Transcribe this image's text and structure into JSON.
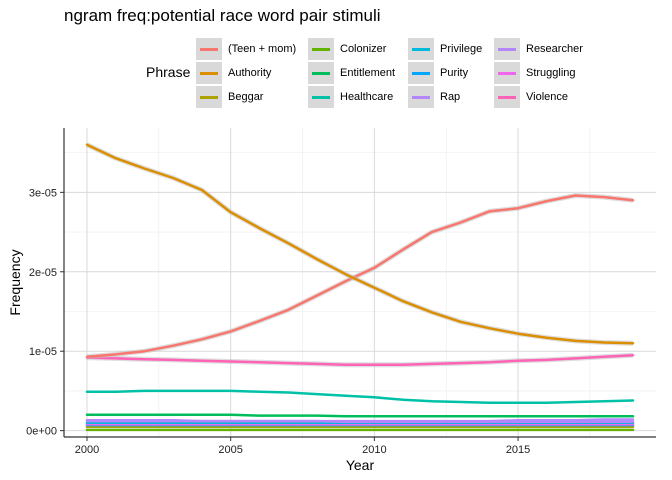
{
  "chart_data": {
    "type": "line",
    "title": "ngram freq:potential race word pair stimuli",
    "xlabel": "Year",
    "ylabel": "Frequency",
    "legend_title": "Phrase",
    "legend_position": "top",
    "grid": true,
    "xlim": [
      1999.2,
      2019.8
    ],
    "ylim": [
      -8e-07,
      3.81e-05
    ],
    "xticks": [
      2000,
      2005,
      2010,
      2015
    ],
    "xtick_labels": [
      "2000",
      "2005",
      "2010",
      "2015"
    ],
    "yticks": [
      0,
      1e-05,
      2e-05,
      3e-05
    ],
    "ytick_labels": [
      "0e+00",
      "1e-05",
      "2e-05",
      "3e-05"
    ],
    "x": [
      2000,
      2001,
      2002,
      2003,
      2004,
      2005,
      2006,
      2007,
      2008,
      2009,
      2010,
      2011,
      2012,
      2013,
      2014,
      2015,
      2016,
      2017,
      2018,
      2019
    ],
    "series": [
      {
        "name": "(Teen + mom)",
        "color": "#F8766D",
        "values": [
          9.3e-06,
          9.6e-06,
          1e-05,
          1.07e-05,
          1.15e-05,
          1.25e-05,
          1.38e-05,
          1.52e-05,
          1.7e-05,
          1.88e-05,
          2.05e-05,
          2.28e-05,
          2.5e-05,
          2.62e-05,
          2.76e-05,
          2.8e-05,
          2.89e-05,
          2.96e-05,
          2.94e-05,
          2.9e-05
        ]
      },
      {
        "name": "Authority",
        "color": "#DB8E00",
        "values": [
          3.6e-05,
          3.43e-05,
          3.3e-05,
          3.18e-05,
          3.03e-05,
          2.75e-05,
          2.55e-05,
          2.36e-05,
          2.16e-05,
          1.97e-05,
          1.8e-05,
          1.63e-05,
          1.49e-05,
          1.37e-05,
          1.29e-05,
          1.22e-05,
          1.17e-05,
          1.13e-05,
          1.11e-05,
          1.1e-05
        ]
      },
      {
        "name": "Beggar",
        "color": "#AEA200",
        "values": [
          5e-07,
          5e-07,
          5e-07,
          5e-07,
          5e-07,
          5e-07,
          5e-07,
          5e-07,
          5e-07,
          5e-07,
          5e-07,
          5e-07,
          5e-07,
          5e-07,
          5e-07,
          5e-07,
          5e-07,
          5e-07,
          5e-07,
          5e-07
        ]
      },
      {
        "name": "Colonizer",
        "color": "#64B200",
        "values": [
          1e-07,
          1e-07,
          1e-07,
          1e-07,
          1e-07,
          1e-07,
          1e-07,
          1e-07,
          1e-07,
          1e-07,
          1e-07,
          1e-07,
          1e-07,
          1e-07,
          1e-07,
          1e-07,
          1e-07,
          1e-07,
          1e-07,
          1e-07
        ]
      },
      {
        "name": "Entitlement",
        "color": "#00BD5C",
        "values": [
          2e-06,
          2e-06,
          2e-06,
          2e-06,
          2e-06,
          2e-06,
          1.9e-06,
          1.9e-06,
          1.9e-06,
          1.8e-06,
          1.8e-06,
          1.8e-06,
          1.8e-06,
          1.8e-06,
          1.8e-06,
          1.8e-06,
          1.8e-06,
          1.8e-06,
          1.8e-06,
          1.8e-06
        ]
      },
      {
        "name": "Healthcare",
        "color": "#00C1A7",
        "values": [
          4.9e-06,
          4.9e-06,
          5e-06,
          5e-06,
          5e-06,
          5e-06,
          4.9e-06,
          4.8e-06,
          4.6e-06,
          4.4e-06,
          4.2e-06,
          3.9e-06,
          3.7e-06,
          3.6e-06,
          3.5e-06,
          3.5e-06,
          3.5e-06,
          3.6e-06,
          3.7e-06,
          3.8e-06
        ]
      },
      {
        "name": "Privilege",
        "color": "#00BADE",
        "values": [
          1e-06,
          1e-06,
          1e-06,
          1e-06,
          1e-06,
          1e-06,
          1e-06,
          1e-06,
          1e-06,
          1e-06,
          1e-06,
          1e-06,
          1e-06,
          1e-06,
          1e-06,
          1e-06,
          1e-06,
          1e-06,
          1e-06,
          1e-06
        ]
      },
      {
        "name": "Purity",
        "color": "#00A6FF",
        "values": [
          7e-07,
          7e-07,
          7e-07,
          7e-07,
          7e-07,
          7e-07,
          7e-07,
          7e-07,
          7e-07,
          7e-07,
          7e-07,
          7e-07,
          7e-07,
          7e-07,
          7e-07,
          7e-07,
          7e-07,
          7e-07,
          7e-07,
          7e-07
        ]
      },
      {
        "name": "Rap",
        "color": "#B385FF",
        "values": [
          1.3e-06,
          1.3e-06,
          1.3e-06,
          1.3e-06,
          1.2e-06,
          1.2e-06,
          1.2e-06,
          1.2e-06,
          1.2e-06,
          1.1e-06,
          1.1e-06,
          1.1e-06,
          1.1e-06,
          1.1e-06,
          1.1e-06,
          1.1e-06,
          1.1e-06,
          1.1e-06,
          1.1e-06,
          1.1e-06
        ]
      },
      {
        "name": "Researcher",
        "color": "#B385FF",
        "values": [
          1.2e-06,
          1.2e-06,
          1.2e-06,
          1.2e-06,
          1.2e-06,
          1.2e-06,
          1.2e-06,
          1.2e-06,
          1.2e-06,
          1.2e-06,
          1.2e-06,
          1.2e-06,
          1.2e-06,
          1.2e-06,
          1.2e-06,
          1.3e-06,
          1.3e-06,
          1.3e-06,
          1.4e-06,
          1.4e-06
        ]
      },
      {
        "name": "Struggling",
        "color": "#EF67EB",
        "values": [
          8e-07,
          8e-07,
          8e-07,
          8e-07,
          8e-07,
          8e-07,
          8e-07,
          8e-07,
          8e-07,
          8e-07,
          8e-07,
          8e-07,
          8e-07,
          8e-07,
          8e-07,
          8e-07,
          8e-07,
          8e-07,
          8e-07,
          8e-07
        ]
      },
      {
        "name": "Violence",
        "color": "#FF63B6",
        "values": [
          9.2e-06,
          9.1e-06,
          9e-06,
          8.9e-06,
          8.8e-06,
          8.7e-06,
          8.6e-06,
          8.5e-06,
          8.4e-06,
          8.3e-06,
          8.3e-06,
          8.3e-06,
          8.4e-06,
          8.5e-06,
          8.6e-06,
          8.8e-06,
          8.9e-06,
          9.1e-06,
          9.3e-06,
          9.5e-06
        ]
      }
    ]
  }
}
